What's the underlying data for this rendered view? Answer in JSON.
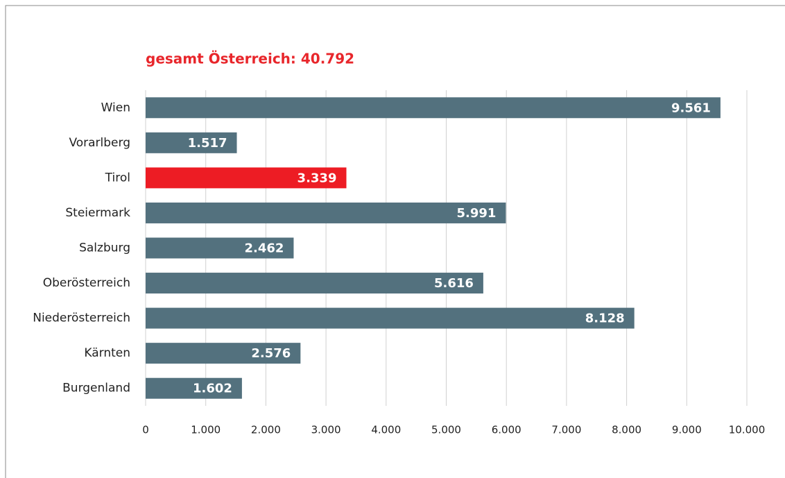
{
  "chart_data": {
    "type": "bar",
    "orientation": "horizontal",
    "title": "gesamt Österreich: 40.792",
    "categories": [
      "Wien",
      "Vorarlberg",
      "Tirol",
      "Steiermark",
      "Salzburg",
      "Oberösterreich",
      "Niederösterreich",
      "Kärnten",
      "Burgenland"
    ],
    "values": [
      9561,
      1517,
      3339,
      5991,
      2462,
      5616,
      8128,
      2576,
      1602
    ],
    "value_labels": [
      "9.561",
      "1.517",
      "3.339",
      "5.991",
      "2.462",
      "5.616",
      "8.128",
      "2.576",
      "1.602"
    ],
    "colors": [
      "#53717e",
      "#53717e",
      "#ed1c24",
      "#53717e",
      "#53717e",
      "#53717e",
      "#53717e",
      "#53717e",
      "#53717e"
    ],
    "xlim": [
      0,
      10000
    ],
    "xticks": [
      0,
      {
        "value": 1000,
        "label": "1.000"
      },
      {
        "value": 2000,
        "label": "2.000"
      },
      {
        "value": 3000,
        "label": "3.000"
      },
      {
        "value": 4000,
        "label": "4.000"
      },
      {
        "value": 5000,
        "label": "5.000"
      },
      {
        "value": 6000,
        "label": "6.000"
      },
      {
        "value": 7000,
        "label": "7.000"
      },
      {
        "value": 8000,
        "label": "8.000"
      },
      {
        "value": 9000,
        "label": "9.000"
      },
      {
        "value": 10000,
        "label": "10.000"
      }
    ],
    "grid": true
  }
}
